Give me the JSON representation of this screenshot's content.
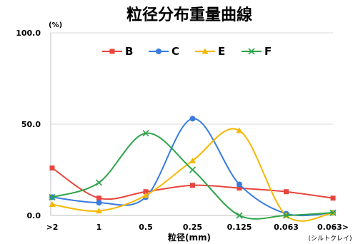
{
  "chart_data": {
    "type": "line",
    "title": "粒径分布重量曲線",
    "xlabel": "粒径(mm)",
    "x_sublabel": "(シルトクレイ)",
    "ylabel_unit": "(%)",
    "categories": [
      ">2",
      "1",
      "0.5",
      "0.25",
      "0.125",
      "0.063",
      "0.063>"
    ],
    "y_ticks": [
      "100.0",
      "50.0",
      "0.0"
    ],
    "ylim": [
      0,
      100
    ],
    "grid": "horizontal",
    "legend_position": "top-center",
    "series": [
      {
        "name": "B",
        "values": [
          26,
          9.5,
          13,
          16.5,
          15,
          13,
          9.5
        ],
        "color": "#e8453c",
        "marker": "square",
        "smooth": true
      },
      {
        "name": "C",
        "values": [
          10,
          7,
          10,
          53,
          17,
          1,
          1.5
        ],
        "color": "#3a7be0",
        "marker": "circle",
        "smooth": true
      },
      {
        "name": "E",
        "values": [
          6,
          2.5,
          11,
          30,
          46.5,
          0,
          1.5
        ],
        "color": "#f5b800",
        "marker": "triangle",
        "smooth": true
      },
      {
        "name": "F",
        "values": [
          10,
          18,
          45,
          25,
          0,
          0,
          1.5
        ],
        "color": "#2ea34a",
        "marker": "cross",
        "smooth": true
      }
    ]
  }
}
